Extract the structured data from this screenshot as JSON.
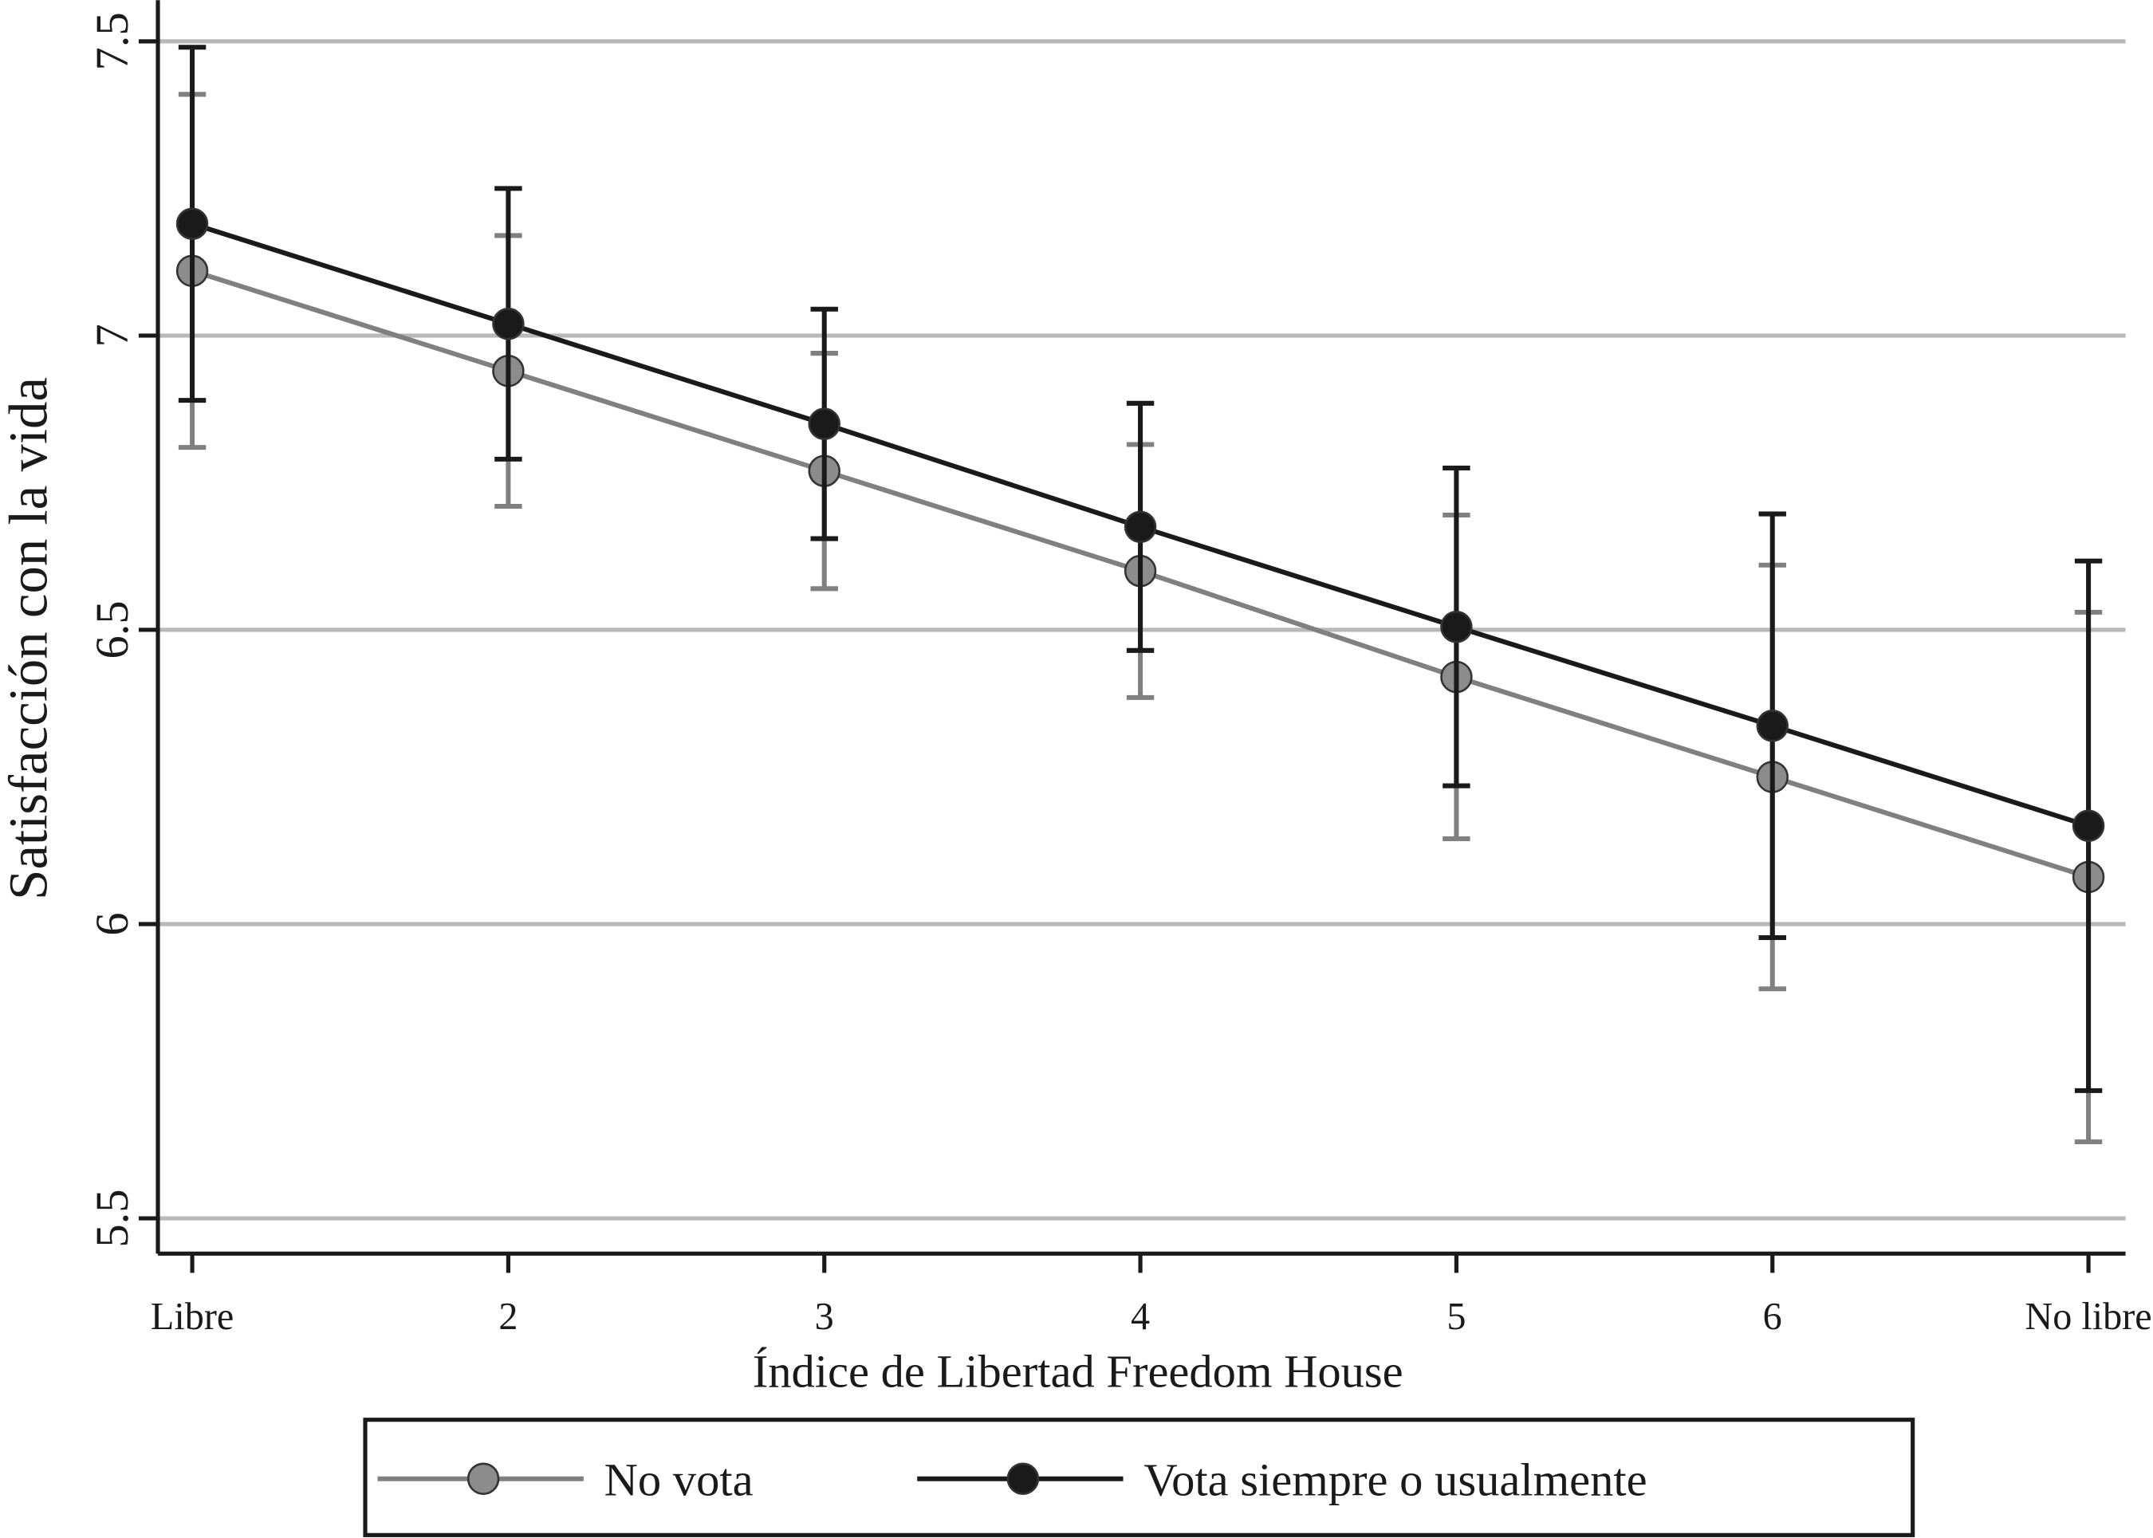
{
  "chart_data": {
    "type": "line",
    "x_label": "Índice de Libertad Freedom House",
    "y_label": "Satisfacción con la vida",
    "categories": [
      "Libre",
      "2",
      "3",
      "4",
      "5",
      "6",
      "No libre"
    ],
    "series": [
      {
        "name": "No vota",
        "color": "#808080",
        "marker_color": "#8c8c8c",
        "values": [
          7.11,
          6.94,
          6.77,
          6.6,
          6.42,
          6.25,
          6.08
        ],
        "errors": [
          0.3,
          0.23,
          0.2,
          0.215,
          0.275,
          0.36,
          0.45
        ]
      },
      {
        "name": "Vota siempre o usualmente",
        "color": "#1a1a1a",
        "marker_color": "#1a1a1a",
        "values": [
          7.19,
          7.02,
          6.85,
          6.675,
          6.505,
          6.337,
          6.167
        ],
        "errors": [
          0.3,
          0.23,
          0.195,
          0.21,
          0.27,
          0.36,
          0.45
        ]
      }
    ],
    "ylim": [
      5.44,
      7.57
    ],
    "yticks": [
      5.5,
      6,
      6.5,
      7,
      7.5
    ],
    "grid": true,
    "legend": "bottom"
  }
}
